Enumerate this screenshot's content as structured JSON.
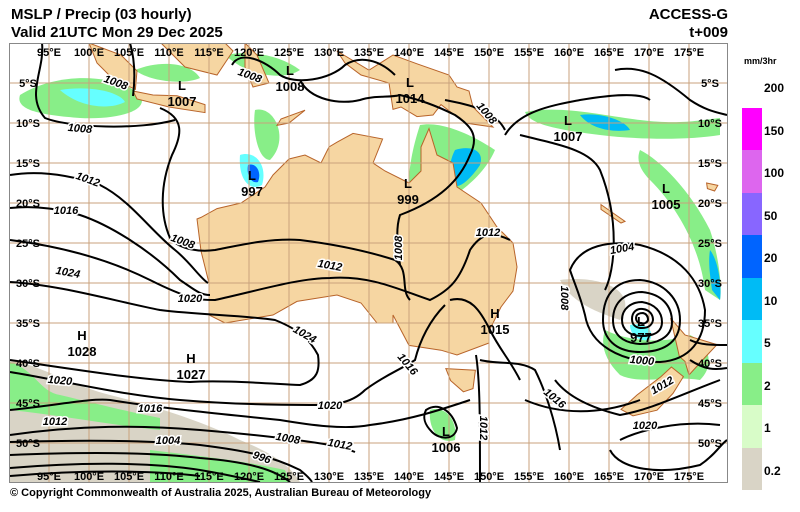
{
  "header": {
    "title": "MSLP / Precip  (03 hourly)",
    "valid": "Valid 21UTC Mon 29 Dec 2025",
    "model": "ACCESS-G",
    "step": "t+009"
  },
  "footer": {
    "copyright": "© Copyright Commonwealth of Australia 2025, Australian Bureau of Meteorology"
  },
  "map": {
    "lon_labels": [
      "95°E",
      "100°E",
      "105°E",
      "110°E",
      "115°E",
      "120°E",
      "125°E",
      "130°E",
      "135°E",
      "140°E",
      "145°E",
      "150°E",
      "155°E",
      "160°E",
      "165°E",
      "170°E",
      "175°E"
    ],
    "lat_labels": [
      "5°S",
      "10°S",
      "15°S",
      "20°S",
      "25°S",
      "30°S",
      "35°S",
      "40°S",
      "45°S",
      "50°S"
    ],
    "colors": {
      "land": "#f6d6a2",
      "coast": "#b8642a",
      "grid": "#c9a27c",
      "isobar": "#000000"
    },
    "pressure_centres": [
      {
        "type": "L",
        "value": "1007"
      },
      {
        "type": "L",
        "value": "1008"
      },
      {
        "type": "L",
        "value": "1014"
      },
      {
        "type": "L",
        "value": "1007"
      },
      {
        "type": "L",
        "value": "997"
      },
      {
        "type": "L",
        "value": "999"
      },
      {
        "type": "L",
        "value": "1005"
      },
      {
        "type": "H",
        "value": "1028"
      },
      {
        "type": "H",
        "value": "1027"
      },
      {
        "type": "H",
        "value": "1015"
      },
      {
        "type": "L",
        "value": "977"
      },
      {
        "type": "L",
        "value": "1006"
      }
    ],
    "isobar_labels": [
      "1008",
      "1012",
      "1016",
      "1024",
      "1008",
      "1012",
      "1020",
      "1024",
      "1020",
      "1016",
      "1012",
      "1004",
      "1008",
      "1012",
      "996",
      "1020",
      "1016",
      "1012",
      "1012",
      "1008",
      "1008",
      "1004",
      "1000",
      "1012",
      "1016",
      "1020",
      "1008",
      "1008",
      "1008"
    ]
  },
  "legend": {
    "unit": "mm/3hr",
    "levels": [
      "200",
      "150",
      "100",
      "50",
      "20",
      "10",
      "5",
      "2",
      "1",
      "0.2"
    ],
    "colors": [
      "#ffffff",
      "#ff00ff",
      "#dd66ee",
      "#8866ff",
      "#0064ff",
      "#00bbf5",
      "#66ffff",
      "#88ee88",
      "#d8fcc8",
      "#d9d4c6"
    ]
  }
}
